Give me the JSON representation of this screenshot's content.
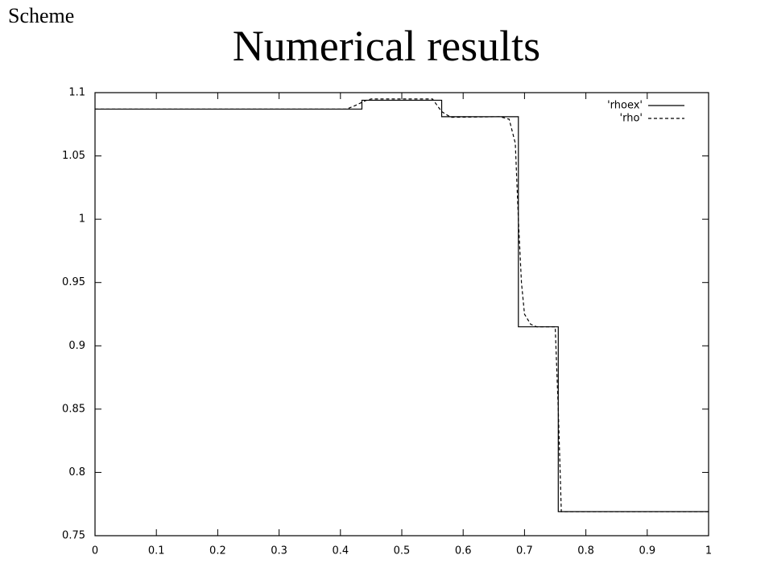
{
  "slide": {
    "tag": "Scheme"
  },
  "chart_data": {
    "type": "line",
    "title": "Numerical results",
    "xlim": [
      0,
      1
    ],
    "ylim": [
      0.75,
      1.1
    ],
    "xticks": [
      0,
      0.1,
      0.2,
      0.3,
      0.4,
      0.5,
      0.6,
      0.7,
      0.8,
      0.9,
      1
    ],
    "yticks": [
      0.75,
      0.8,
      0.85,
      0.9,
      0.95,
      1,
      1.05,
      1.1
    ],
    "grid": false,
    "legend": "top-right",
    "series": [
      {
        "name": "'rhoex'",
        "color": "#000000",
        "style": "solid",
        "x": [
          0,
          0.435,
          0.435,
          0.565,
          0.565,
          0.69,
          0.69,
          0.755,
          0.755,
          1
        ],
        "values": [
          1.087,
          1.087,
          1.094,
          1.094,
          1.081,
          1.081,
          0.915,
          0.915,
          0.769,
          0.769
        ]
      },
      {
        "name": "'rho'",
        "color": "#000000",
        "style": "dashed",
        "x": [
          0,
          0.41,
          0.425,
          0.44,
          0.45,
          0.55,
          0.565,
          0.58,
          0.66,
          0.675,
          0.685,
          0.69,
          0.695,
          0.7,
          0.71,
          0.72,
          0.73,
          0.75,
          0.755,
          0.76,
          1
        ],
        "values": [
          1.087,
          1.087,
          1.09,
          1.0935,
          1.095,
          1.095,
          1.085,
          1.0805,
          1.081,
          1.079,
          1.06,
          1.0,
          0.95,
          0.925,
          0.917,
          0.915,
          0.915,
          0.915,
          0.85,
          0.769,
          0.769
        ]
      }
    ]
  }
}
